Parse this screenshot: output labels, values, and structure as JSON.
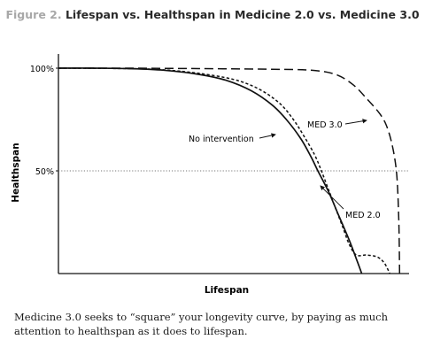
{
  "figure": {
    "label": "Figure 2.",
    "title": "Lifespan vs. Healthspan in Medicine 2.0 vs. Medicine 3.0",
    "caption": "Medicine 3.0 seeks to “square” your longevity curve, by paying as much attention to healthspan as it does to lifespan."
  },
  "chart_data": {
    "type": "line",
    "xlabel": "Lifespan",
    "ylabel": "Healthspan",
    "xlim": [
      0,
      100
    ],
    "ylim": [
      0,
      100
    ],
    "x_ticks": [],
    "y_ticks": [
      {
        "value": 100,
        "label": "100%"
      },
      {
        "value": 50,
        "label": "50%"
      }
    ],
    "reference_lines": [
      {
        "axis": "y",
        "value": 50,
        "style": "dotted"
      }
    ],
    "grid": false,
    "legend": "none",
    "series": [
      {
        "name": "No intervention",
        "style": "solid",
        "color": "#111111",
        "points": [
          [
            0,
            100
          ],
          [
            10,
            100
          ],
          [
            20,
            99.8
          ],
          [
            30,
            99
          ],
          [
            40,
            97
          ],
          [
            48,
            94
          ],
          [
            55,
            89
          ],
          [
            61,
            82
          ],
          [
            65,
            75
          ],
          [
            69,
            66
          ],
          [
            72,
            57
          ],
          [
            74,
            50
          ],
          [
            77,
            40
          ],
          [
            80,
            28
          ],
          [
            83,
            16
          ],
          [
            85,
            7
          ],
          [
            86.5,
            0
          ]
        ]
      },
      {
        "name": "MED 2.0",
        "style": "dashed",
        "color": "#111111",
        "points": [
          [
            0,
            100
          ],
          [
            20,
            99.8
          ],
          [
            30,
            99.2
          ],
          [
            40,
            97.5
          ],
          [
            50,
            94.5
          ],
          [
            57,
            90
          ],
          [
            63,
            83
          ],
          [
            67,
            75
          ],
          [
            70,
            67
          ],
          [
            73,
            58
          ],
          [
            75,
            50
          ],
          [
            77,
            41
          ],
          [
            79,
            32
          ],
          [
            81,
            23
          ],
          [
            83,
            14
          ],
          [
            85,
            9
          ],
          [
            88,
            9
          ],
          [
            91,
            8
          ],
          [
            93,
            5
          ],
          [
            94.5,
            0
          ]
        ]
      },
      {
        "name": "MED 3.0",
        "style": "dashed",
        "color": "#111111",
        "points": [
          [
            0,
            100
          ],
          [
            20,
            100
          ],
          [
            40,
            99.8
          ],
          [
            60,
            99.5
          ],
          [
            72,
            99
          ],
          [
            79,
            97
          ],
          [
            84,
            92
          ],
          [
            88,
            85
          ],
          [
            92,
            77
          ],
          [
            94,
            70
          ],
          [
            95.5,
            60
          ],
          [
            96.5,
            48
          ],
          [
            97,
            30
          ],
          [
            97.2,
            15
          ],
          [
            97.3,
            0
          ]
        ]
      }
    ],
    "annotations": [
      {
        "text": "No intervention",
        "target": "No intervention"
      },
      {
        "text": "MED 3.0",
        "target": "MED 3.0"
      },
      {
        "text": "MED 2.0",
        "target": "MED 2.0"
      }
    ]
  }
}
